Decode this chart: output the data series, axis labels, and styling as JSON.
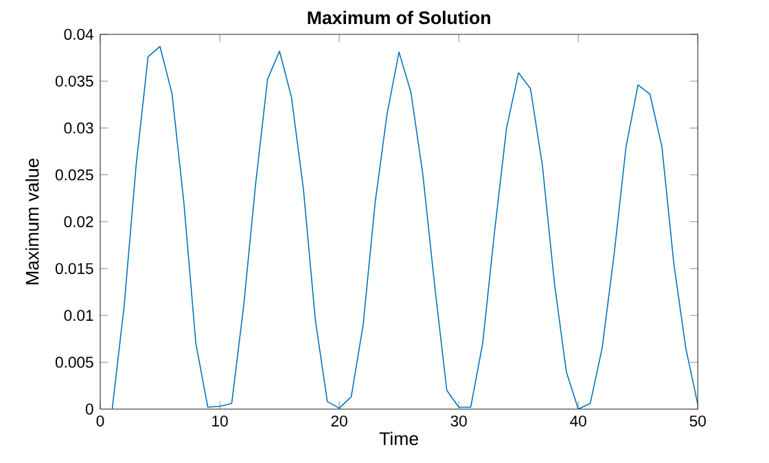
{
  "chart_data": {
    "type": "line",
    "title": "Maximum of Solution",
    "xlabel": "Time",
    "ylabel": "Maximum value",
    "x": [
      1,
      2,
      3,
      4,
      5,
      6,
      7,
      8,
      9,
      10,
      11,
      12,
      13,
      14,
      15,
      16,
      17,
      18,
      19,
      20,
      21,
      22,
      23,
      24,
      25,
      26,
      27,
      28,
      29,
      30,
      31,
      32,
      33,
      34,
      35,
      36,
      37,
      38,
      39,
      40,
      41,
      42,
      43,
      44,
      45,
      46,
      47,
      48,
      49,
      50
    ],
    "series": [
      {
        "color": "#0072bd",
        "values": [
          0,
          0.011,
          0.026,
          0.0376,
          0.0387,
          0.0337,
          0.022,
          0.007,
          0.0002,
          0.0003,
          0.0006,
          0.011,
          0.024,
          0.0352,
          0.0382,
          0.0333,
          0.0235,
          0.0095,
          0.0008,
          0.0001,
          0.0013,
          0.009,
          0.022,
          0.0315,
          0.0381,
          0.0338,
          0.025,
          0.013,
          0.002,
          0.0002,
          0.0002,
          0.007,
          0.019,
          0.03,
          0.0359,
          0.0342,
          0.026,
          0.0135,
          0.004,
          0.0,
          0.0006,
          0.0065,
          0.0165,
          0.028,
          0.0346,
          0.0336,
          0.028,
          0.0155,
          0.0065,
          0.0005
        ]
      }
    ],
    "xlim": [
      0,
      50
    ],
    "ylim": [
      0,
      0.04
    ],
    "xticks": [
      0,
      10,
      20,
      30,
      40,
      50
    ],
    "yticks": [
      0,
      0.005,
      0.01,
      0.015,
      0.02,
      0.025,
      0.03,
      0.035,
      0.04
    ],
    "grid": false,
    "marker": "none",
    "line_style": "solid"
  }
}
